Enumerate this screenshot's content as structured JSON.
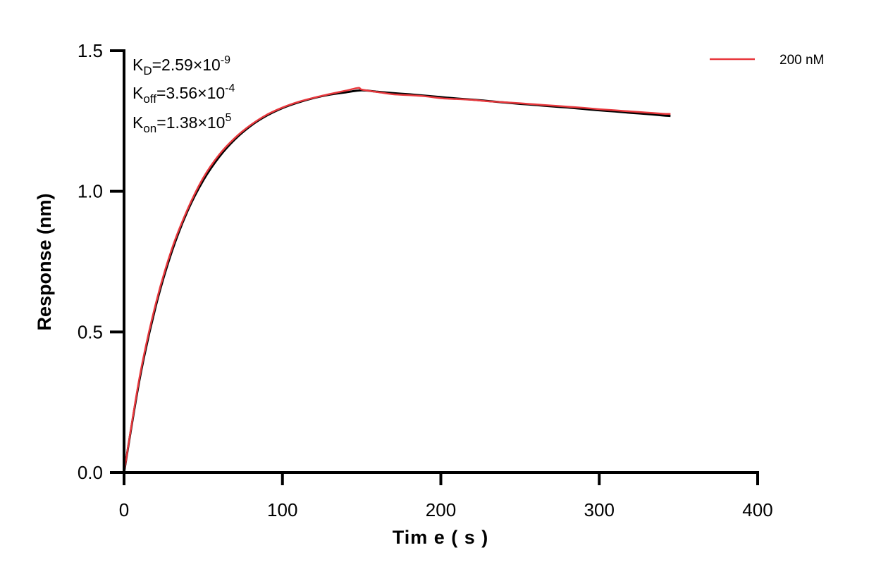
{
  "chart_data": {
    "type": "line",
    "xlabel": "Time e ( s )",
    "xlabel_text": "Tim e ( s )",
    "ylabel": "Response (nm)",
    "xlim": [
      0,
      400
    ],
    "ylim": [
      0,
      1.5
    ],
    "x_ticks": [
      "0",
      "100",
      "200",
      "300",
      "400"
    ],
    "y_ticks": [
      "0.0",
      "0.5",
      "1.0",
      "1.5"
    ],
    "grid": false,
    "legend_position": "top-right",
    "annotations": {
      "kd": {
        "base": "K",
        "sub": "D",
        "value": "=2.59×10",
        "exp": "-9"
      },
      "koff": {
        "base": "K",
        "sub": "off",
        "value": "=3.56×10",
        "exp": "-4"
      },
      "kon": {
        "base": "K",
        "sub": "on",
        "value": "=1.38×10",
        "exp": "5"
      }
    },
    "series": [
      {
        "name": "200 nM",
        "color": "#e8383d",
        "x": [
          0,
          10,
          20,
          30,
          40,
          50,
          60,
          70,
          80,
          90,
          100,
          110,
          120,
          130,
          140,
          148,
          150,
          160,
          170,
          180,
          190,
          200,
          210,
          220,
          230,
          240,
          250,
          260,
          270,
          280,
          290,
          300,
          310,
          320,
          330,
          340,
          345
        ],
        "y": [
          0,
          0.345,
          0.6,
          0.792,
          0.935,
          1.048,
          1.13,
          1.19,
          1.236,
          1.272,
          1.298,
          1.318,
          1.333,
          1.346,
          1.358,
          1.368,
          1.362,
          1.353,
          1.345,
          1.342,
          1.338,
          1.331,
          1.328,
          1.325,
          1.32,
          1.317,
          1.313,
          1.309,
          1.305,
          1.301,
          1.297,
          1.292,
          1.288,
          1.284,
          1.28,
          1.276,
          1.275
        ]
      },
      {
        "role": "fit",
        "color": "#000000",
        "x": [
          0,
          10,
          20,
          30,
          40,
          50,
          60,
          70,
          80,
          90,
          100,
          110,
          120,
          130,
          140,
          150,
          160,
          170,
          180,
          190,
          200,
          210,
          220,
          230,
          240,
          250,
          260,
          270,
          280,
          290,
          300,
          310,
          320,
          330,
          340,
          345
        ],
        "y": [
          0,
          0.337,
          0.591,
          0.783,
          0.929,
          1.039,
          1.122,
          1.185,
          1.233,
          1.269,
          1.296,
          1.316,
          1.332,
          1.344,
          1.352,
          1.359,
          1.354,
          1.349,
          1.345,
          1.34,
          1.335,
          1.33,
          1.326,
          1.321,
          1.316,
          1.311,
          1.307,
          1.302,
          1.298,
          1.293,
          1.288,
          1.284,
          1.279,
          1.275,
          1.27,
          1.268
        ]
      }
    ]
  }
}
